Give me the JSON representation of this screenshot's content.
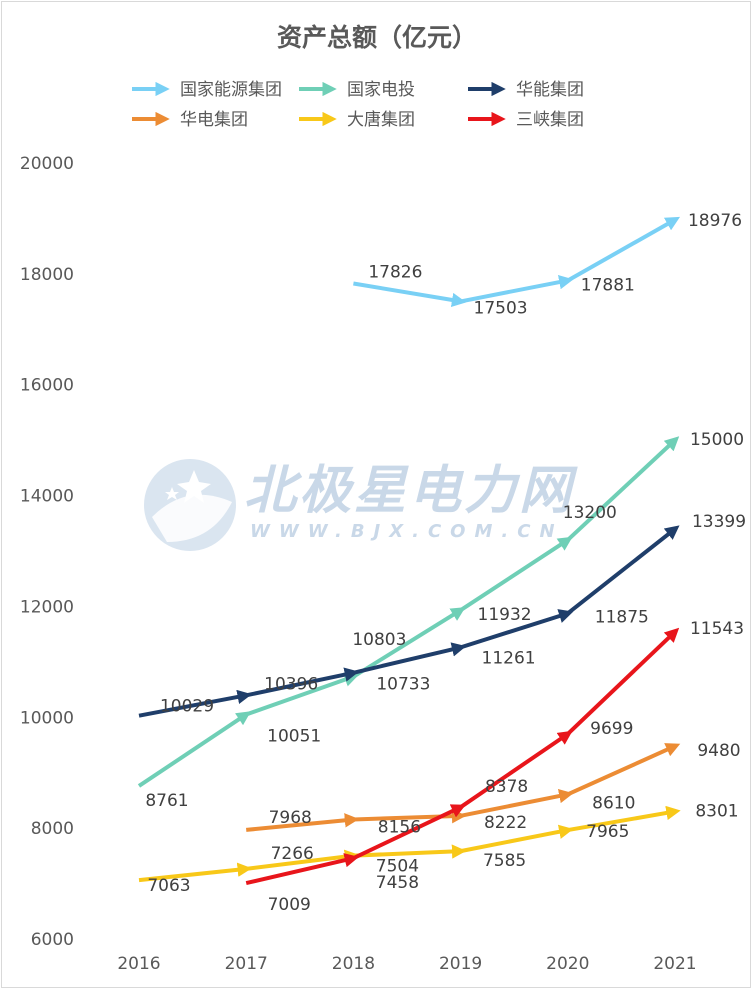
{
  "chart_data": {
    "type": "line",
    "title": "资产总额（亿元）",
    "xlabel": "",
    "ylabel": "",
    "x": [
      2016,
      2017,
      2018,
      2019,
      2020,
      2021
    ],
    "ylim": [
      6000,
      20000
    ],
    "yticks": [
      6000,
      8000,
      10000,
      12000,
      14000,
      16000,
      18000,
      20000
    ],
    "grid": false,
    "legend_position": "top",
    "series": [
      {
        "name": "国家能源集团",
        "color": "#79d0f5",
        "values": [
          null,
          null,
          17826,
          17503,
          17881,
          18976
        ]
      },
      {
        "name": "国家电投",
        "color": "#6fcfb6",
        "values": [
          8761,
          10051,
          10733,
          11932,
          13200,
          15000
        ]
      },
      {
        "name": "华能集团",
        "color": "#1f3e6a",
        "values": [
          10029,
          10396,
          10803,
          11261,
          11875,
          13399
        ]
      },
      {
        "name": "华电集团",
        "color": "#ec8c34",
        "values": [
          null,
          7968,
          8156,
          8222,
          8610,
          9480
        ]
      },
      {
        "name": "大唐集团",
        "color": "#f8c819",
        "values": [
          7063,
          7266,
          7504,
          7585,
          7965,
          8301
        ]
      },
      {
        "name": "三峡集团",
        "color": "#e8151b",
        "values": [
          null,
          7009,
          7458,
          8378,
          9699,
          11543
        ]
      }
    ]
  },
  "watermark": {
    "main": "北极星电力网",
    "sub": "WWW.BJX.COM.CN",
    "icon": "star-logo-icon"
  }
}
